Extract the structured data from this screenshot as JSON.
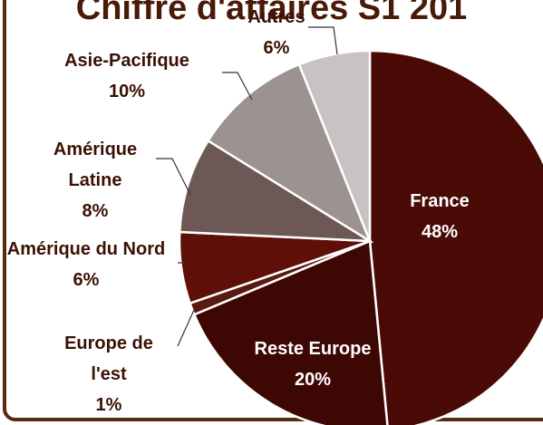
{
  "chart_data": {
    "type": "pie",
    "title": "Chiffre d'affaires S1 201",
    "categories": [
      "France",
      "Reste Europe",
      "Europe de l'est",
      "Amérique du Nord",
      "Amérique Latine",
      "Asie-Pacifique",
      "Autres"
    ],
    "values": [
      48,
      20,
      1,
      6,
      8,
      10,
      6
    ],
    "value_labels": [
      "48%",
      "20%",
      "1%",
      "6%",
      "8%",
      "10%",
      "6%"
    ],
    "colors": [
      "#4a0b06",
      "#3d0704",
      "#5a1a12",
      "#5e0f08",
      "#6e5856",
      "#9c9292",
      "#c9c2c2"
    ]
  }
}
